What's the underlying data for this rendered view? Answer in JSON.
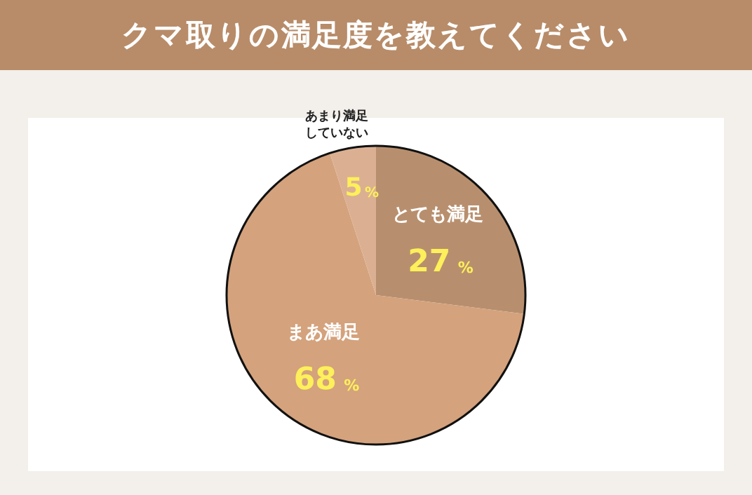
{
  "chart_data": {
    "type": "pie",
    "title": "クマ取りの満足度を教えてください",
    "categories": [
      "とても満足",
      "まあ満足",
      "あまり満足していない"
    ],
    "values": [
      27,
      68,
      5
    ],
    "colors": [
      "#b88f6e",
      "#d4a27c",
      "#dbb092"
    ],
    "value_labels": [
      "27%",
      "68%",
      "5%"
    ],
    "legend": false
  }
}
